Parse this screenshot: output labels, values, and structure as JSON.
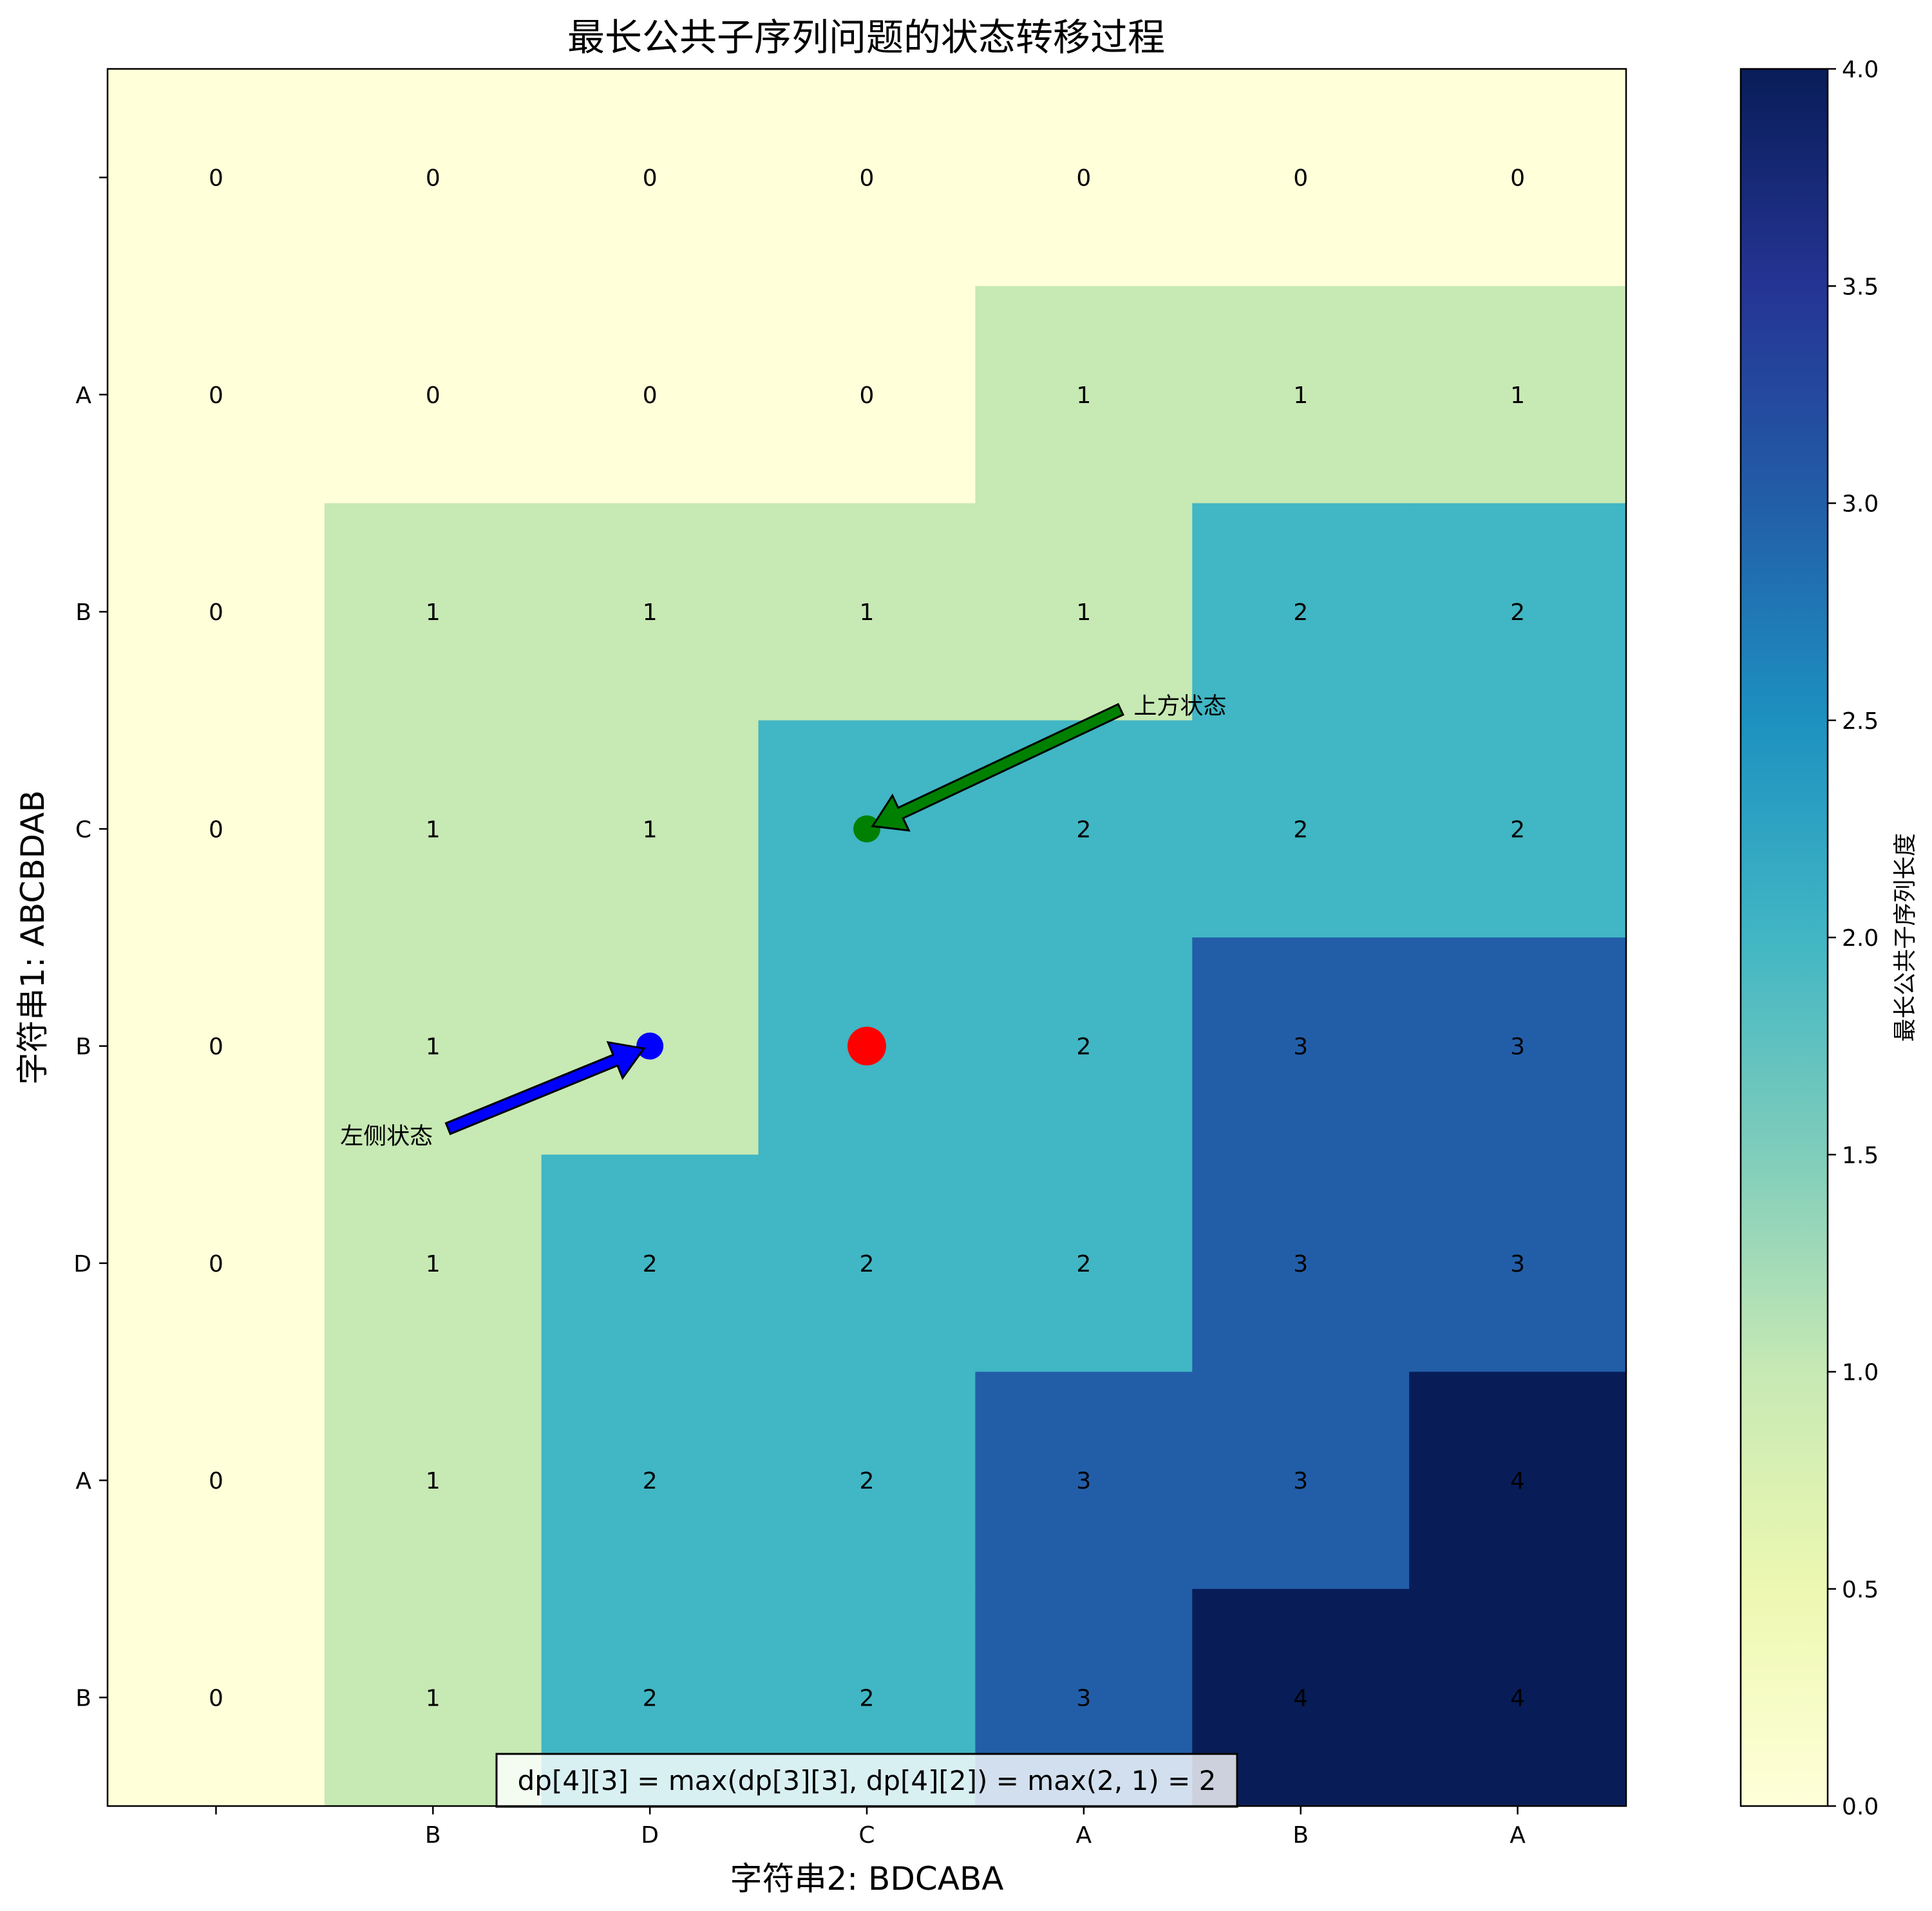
{
  "chart_data": {
    "type": "heatmap",
    "title": "最长公共子序列问题的状态转移过程",
    "xlabel": "字符串2: BDCABA",
    "ylabel": "字符串1: ABCBDAB",
    "x_ticks": [
      "",
      "B",
      "D",
      "C",
      "A",
      "B",
      "A"
    ],
    "y_ticks": [
      "",
      "A",
      "B",
      "C",
      "B",
      "D",
      "A",
      "B"
    ],
    "values": [
      [
        0,
        0,
        0,
        0,
        0,
        0,
        0
      ],
      [
        0,
        0,
        0,
        0,
        1,
        1,
        1
      ],
      [
        0,
        1,
        1,
        1,
        1,
        2,
        2
      ],
      [
        0,
        1,
        1,
        2,
        2,
        2,
        2
      ],
      [
        0,
        1,
        1,
        2,
        2,
        3,
        3
      ],
      [
        0,
        1,
        2,
        2,
        2,
        3,
        3
      ],
      [
        0,
        1,
        2,
        2,
        3,
        3,
        4
      ],
      [
        0,
        1,
        2,
        2,
        3,
        4,
        4
      ]
    ],
    "colormap": "YlGnBu",
    "color_range": [
      0,
      4
    ],
    "colorbar": {
      "label": "最长公共子序列长度",
      "ticks": [
        "0.0",
        "0.5",
        "1.0",
        "1.5",
        "2.0",
        "2.5",
        "3.0",
        "3.5",
        "4.0"
      ]
    },
    "markers": [
      {
        "row": 4,
        "col": 3,
        "color": "#ff0000",
        "role": "current"
      },
      {
        "row": 3,
        "col": 3,
        "color": "#008000",
        "role": "up"
      },
      {
        "row": 4,
        "col": 2,
        "color": "#0000ff",
        "role": "left"
      }
    ],
    "annotations": [
      {
        "text": "上方状态",
        "target_row": 3,
        "target_col": 3,
        "arrow_color": "#008000"
      },
      {
        "text": "左侧状态",
        "target_row": 4,
        "target_col": 2,
        "arrow_color": "#0000ff"
      }
    ],
    "formula": "dp[4][3] = max(dp[3][3], dp[4][2]) = max(2, 1) = 2"
  }
}
